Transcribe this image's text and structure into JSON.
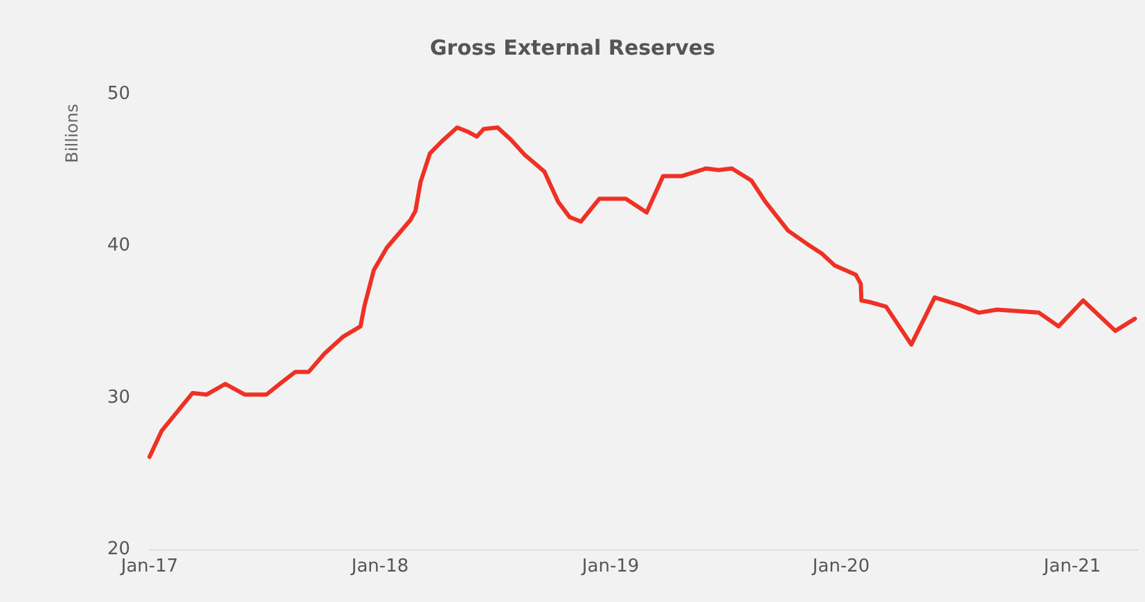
{
  "chart_data": {
    "type": "line",
    "title": "Gross External Reserves",
    "ylabel": "Billions",
    "x": [
      "2017-01-01",
      "2017-01-20",
      "2017-03-10",
      "2017-04-01",
      "2017-05-01",
      "2017-06-01",
      "2017-07-05",
      "2017-08-01",
      "2017-08-20",
      "2017-09-10",
      "2017-10-05",
      "2017-11-03",
      "2017-12-01",
      "2017-12-07",
      "2017-12-22",
      "2018-01-12",
      "2018-02-18",
      "2018-02-26",
      "2018-03-06",
      "2018-03-21",
      "2018-04-09",
      "2018-05-03",
      "2018-05-21",
      "2018-06-03",
      "2018-06-14",
      "2018-07-06",
      "2018-07-27",
      "2018-08-18",
      "2018-09-18",
      "2018-10-10",
      "2018-10-28",
      "2018-11-15",
      "2018-12-14",
      "2019-01-25",
      "2019-02-27",
      "2019-03-25",
      "2019-04-24",
      "2019-06-01",
      "2019-06-21",
      "2019-07-12",
      "2019-08-12",
      "2019-09-03",
      "2019-10-09",
      "2019-11-09",
      "2019-12-01",
      "2019-12-22",
      "2020-01-24",
      "2020-02-01",
      "2020-02-02",
      "2020-02-15",
      "2020-03-12",
      "2020-04-21",
      "2020-05-28",
      "2020-07-06",
      "2020-08-06",
      "2020-09-04",
      "2020-11-09",
      "2020-12-10",
      "2021-01-18",
      "2021-03-10",
      "2021-04-10"
    ],
    "series": [
      {
        "color": "#ee3124",
        "values": [
          26.1,
          27.8,
          30.3,
          30.2,
          30.9,
          30.2,
          30.2,
          31.1,
          31.7,
          31.7,
          32.9,
          34.0,
          34.7,
          36.0,
          38.4,
          39.9,
          41.7,
          42.3,
          44.2,
          46.1,
          46.9,
          47.8,
          47.5,
          47.2,
          47.7,
          47.8,
          47.0,
          46.0,
          44.9,
          42.9,
          41.9,
          41.6,
          43.1,
          43.1,
          42.2,
          44.6,
          44.6,
          45.1,
          45.0,
          45.1,
          44.3,
          42.9,
          41.0,
          40.1,
          39.5,
          38.7,
          38.1,
          37.5,
          36.4,
          36.3,
          36.0,
          33.5,
          36.6,
          36.1,
          35.6,
          35.8,
          35.6,
          34.7,
          36.4,
          34.4,
          35.2
        ]
      }
    ],
    "xlim": [
      "2017-01-01",
      "2021-04-15"
    ],
    "xticks": [
      {
        "value": "2017-01",
        "label": "Jan-17"
      },
      {
        "value": "2018-01",
        "label": "Jan-18"
      },
      {
        "value": "2019-01",
        "label": "Jan-19"
      },
      {
        "value": "2020-01",
        "label": "Jan-20"
      },
      {
        "value": "2021-01",
        "label": "Jan-21"
      }
    ],
    "ylim": [
      20,
      50
    ],
    "yticks": [
      20,
      30,
      40,
      50
    ],
    "grid": false,
    "marker": "none",
    "line_style": "solid"
  }
}
